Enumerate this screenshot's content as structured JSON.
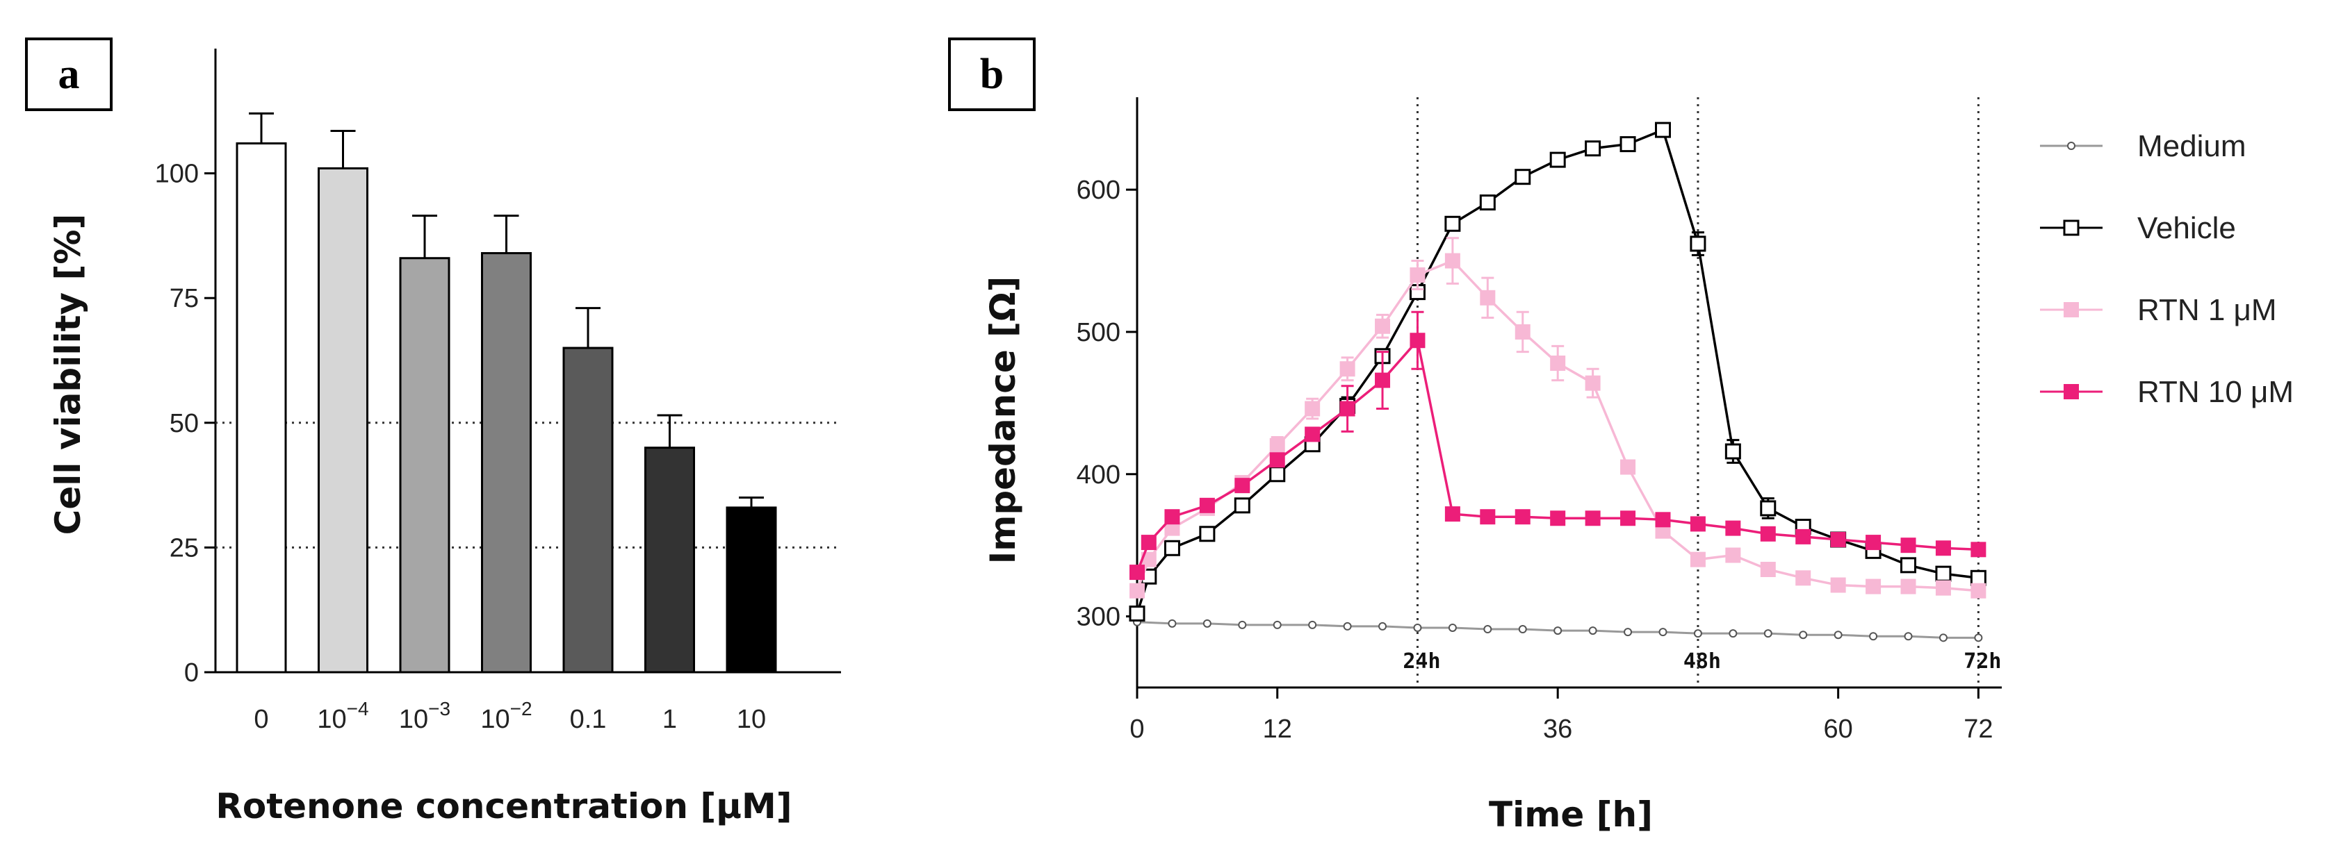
{
  "panels": {
    "a_label": "a",
    "b_label": "b"
  },
  "chart_data": [
    {
      "id": "a",
      "type": "bar",
      "title": "",
      "xlabel": "Rotenone concentration [μM]",
      "ylabel": "Cell viability [%]",
      "ylim": [
        0,
        125
      ],
      "yticks": [
        0,
        25,
        50,
        75,
        100
      ],
      "categories": [
        {
          "base": "0"
        },
        {
          "base": "10",
          "exp": "−4"
        },
        {
          "base": "10",
          "exp": "−3"
        },
        {
          "base": "10",
          "exp": "−2"
        },
        {
          "base": "0.1"
        },
        {
          "base": "1"
        },
        {
          "base": "10"
        }
      ],
      "values": [
        106,
        101,
        83,
        84,
        65,
        45,
        33
      ],
      "errors": [
        6,
        7.5,
        8.5,
        7.5,
        8,
        6.5,
        2
      ],
      "colors": [
        "#ffffff",
        "#d6d6d6",
        "#a6a6a6",
        "#808080",
        "#5a5a5a",
        "#333333",
        "#000000"
      ],
      "reference_lines": [
        50,
        25
      ]
    },
    {
      "id": "b",
      "type": "line",
      "title": "",
      "xlabel": "Time [h]",
      "ylabel": "Impedance [Ω]",
      "xlim": [
        0,
        74
      ],
      "ylim": [
        250,
        665
      ],
      "xticks": [
        0,
        12,
        36,
        60,
        72
      ],
      "yticks": [
        300,
        400,
        500,
        600
      ],
      "time_markers": [
        {
          "x": 24,
          "label": "24h"
        },
        {
          "x": 48,
          "label": "48h"
        },
        {
          "x": 72,
          "label": "72h"
        }
      ],
      "series": [
        {
          "name": "Medium",
          "color": "#999999",
          "marker": "circle-small",
          "x": [
            0,
            3,
            6,
            9,
            12,
            15,
            18,
            21,
            24,
            27,
            30,
            33,
            36,
            39,
            42,
            45,
            48,
            51,
            54,
            57,
            60,
            63,
            66,
            69,
            72
          ],
          "y": [
            296,
            295,
            295,
            294,
            294,
            294,
            293,
            293,
            292,
            292,
            291,
            291,
            290,
            290,
            289,
            289,
            288,
            288,
            288,
            287,
            287,
            286,
            286,
            285,
            285
          ]
        },
        {
          "name": "Vehicle",
          "color": "#000000",
          "marker": "square-open",
          "x": [
            0,
            1,
            3,
            6,
            9,
            12,
            15,
            18,
            21,
            24,
            27,
            30,
            33,
            36,
            39,
            42,
            45,
            48,
            51,
            54,
            57,
            60,
            63,
            66,
            69,
            72
          ],
          "y": [
            302,
            328,
            348,
            358,
            378,
            400,
            421,
            448,
            483,
            528,
            576,
            591,
            609,
            621,
            629,
            632,
            642,
            562,
            416,
            376,
            363,
            354,
            346,
            336,
            330,
            327
          ],
          "err": [
            0,
            0,
            0,
            0,
            0,
            0,
            0,
            6,
            0,
            0,
            0,
            0,
            0,
            0,
            0,
            0,
            0,
            8,
            8,
            7,
            0,
            0,
            0,
            0,
            0,
            0
          ]
        },
        {
          "name": "RTN 1 μM",
          "color": "#f7b8d5",
          "marker": "square-filled",
          "x": [
            0,
            1,
            3,
            6,
            9,
            12,
            15,
            18,
            21,
            24,
            27,
            30,
            33,
            36,
            39,
            42,
            45,
            48,
            51,
            54,
            57,
            60,
            63,
            66,
            69,
            72
          ],
          "y": [
            318,
            340,
            362,
            376,
            394,
            420,
            446,
            474,
            504,
            540,
            550,
            524,
            500,
            478,
            464,
            405,
            360,
            340,
            343,
            333,
            327,
            322,
            321,
            321,
            320,
            318
          ],
          "err": [
            0,
            0,
            0,
            0,
            0,
            6,
            7,
            8,
            8,
            10,
            16,
            14,
            14,
            12,
            10,
            0,
            0,
            0,
            0,
            0,
            0,
            0,
            0,
            0,
            0,
            0
          ]
        },
        {
          "name": "RTN 10 μM",
          "color": "#ec1e79",
          "marker": "square-filled",
          "x": [
            0,
            1,
            3,
            6,
            9,
            12,
            15,
            18,
            21,
            24,
            27,
            30,
            33,
            36,
            39,
            42,
            45,
            48,
            51,
            54,
            57,
            60,
            63,
            66,
            69,
            72
          ],
          "y": [
            331,
            352,
            370,
            378,
            392,
            410,
            428,
            446,
            466,
            494,
            372,
            370,
            370,
            369,
            369,
            369,
            368,
            365,
            362,
            358,
            356,
            354,
            352,
            350,
            348,
            347
          ],
          "err": [
            0,
            0,
            0,
            0,
            0,
            0,
            0,
            16,
            20,
            20,
            0,
            0,
            0,
            0,
            0,
            0,
            0,
            0,
            0,
            0,
            0,
            0,
            0,
            0,
            0,
            0
          ]
        }
      ]
    }
  ]
}
